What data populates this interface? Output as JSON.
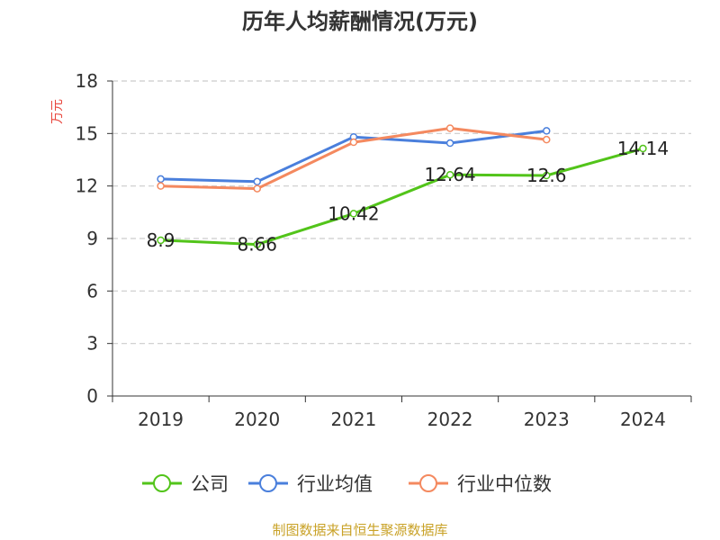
{
  "chart_data": {
    "type": "line",
    "title": "历年人均薪酬情况(万元)",
    "ylabel": "万元",
    "ylim": [
      0,
      18
    ],
    "yticks": [
      0,
      3,
      6,
      9,
      12,
      15,
      18
    ],
    "grid": true,
    "legend_position": "bottom",
    "categories": [
      "2019",
      "2020",
      "2021",
      "2022",
      "2023",
      "2024"
    ],
    "series": [
      {
        "name": "公司",
        "color": "#52c41a",
        "values": [
          8.9,
          8.66,
          10.42,
          12.64,
          12.6,
          14.14
        ],
        "labels": [
          "8.9",
          "8.66",
          "10.42",
          "12.64",
          "12.6",
          "14.14"
        ]
      },
      {
        "name": "行业均值",
        "color": "#4a7fdc",
        "values": [
          12.4,
          12.25,
          14.8,
          14.45,
          15.15,
          null
        ]
      },
      {
        "name": "行业中位数",
        "color": "#f4895f",
        "values": [
          12.0,
          11.85,
          14.5,
          15.3,
          14.65,
          null
        ]
      }
    ]
  },
  "source_text": "制图数据来自恒生聚源数据库",
  "colors": {
    "ylabel": "#e8453c",
    "source": "#c9a227",
    "axis": "#333333",
    "grid": "#cccccc"
  }
}
